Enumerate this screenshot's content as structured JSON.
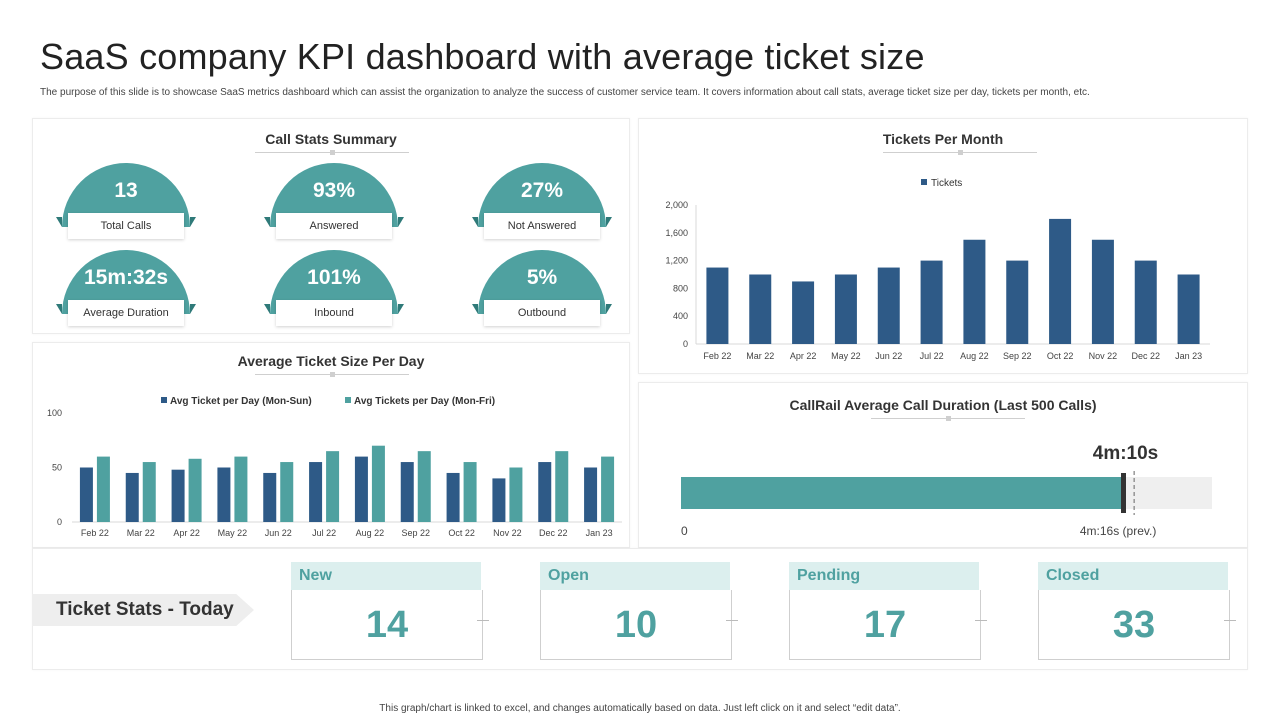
{
  "page": {
    "title": "SaaS company KPI dashboard with average ticket size",
    "subtitle": "The purpose of this slide is to showcase SaaS metrics dashboard which can assist the organization to analyze the success of customer service team. It covers information about call stats, average ticket size per day, tickets per month, etc.",
    "footer": "This graph/chart is linked to excel, and changes automatically based on data. Just left click on it and select “edit data”."
  },
  "colors": {
    "teal": "#4fa1a0",
    "navy": "#2e5a87",
    "light_teal": "#dcefee"
  },
  "call_stats": {
    "title": "Call Stats Summary",
    "cards": [
      {
        "value": "13",
        "label": "Total Calls"
      },
      {
        "value": "93%",
        "label": "Answered"
      },
      {
        "value": "27%",
        "label": "Not Answered"
      },
      {
        "value": "15m:32s",
        "label": "Average Duration"
      },
      {
        "value": "101%",
        "label": "Inbound"
      },
      {
        "value": "5%",
        "label": "Outbound"
      }
    ]
  },
  "call_duration": {
    "title": "CallRail Average Call Duration (Last 500 Calls)",
    "current_label": "4m:10s",
    "min_label": "0",
    "prev_label": "4m:16s (prev.)",
    "current_seconds": 250,
    "prev_seconds": 256,
    "max_seconds": 300
  },
  "ticket_stats": {
    "title": "Ticket Stats - Today",
    "cards": [
      {
        "label": "New",
        "value": "14"
      },
      {
        "label": "Open",
        "value": "10"
      },
      {
        "label": "Pending",
        "value": "17"
      },
      {
        "label": "Closed",
        "value": "33"
      }
    ]
  },
  "chart_data": [
    {
      "id": "tickets_per_month",
      "type": "bar",
      "title": "Tickets Per Month",
      "categories": [
        "Feb 22",
        "Mar 22",
        "Apr 22",
        "May 22",
        "Jun 22",
        "Jul 22",
        "Aug 22",
        "Sep 22",
        "Oct 22",
        "Nov 22",
        "Dec 22",
        "Jan 23"
      ],
      "series": [
        {
          "name": "Tickets",
          "values": [
            1100,
            1000,
            900,
            1000,
            1100,
            1200,
            1500,
            1200,
            1800,
            1500,
            1200,
            1000
          ]
        }
      ],
      "ylim": [
        0,
        2000
      ],
      "yticks": [
        "0",
        "400",
        "800",
        "1,200",
        "1,600",
        "2,000"
      ],
      "ytick_values": [
        0,
        400,
        800,
        1200,
        1600,
        2000
      ],
      "legend": "top-center"
    },
    {
      "id": "avg_ticket_size",
      "type": "bar",
      "title": "Average Ticket Size Per Day",
      "categories": [
        "Feb 22",
        "Mar 22",
        "Apr 22",
        "May 22",
        "Jun 22",
        "Jul 22",
        "Aug 22",
        "Sep 22",
        "Oct 22",
        "Nov 22",
        "Dec 22",
        "Jan 23"
      ],
      "series": [
        {
          "name": "Avg Ticket per Day (Mon-Sun)",
          "values": [
            50,
            45,
            48,
            50,
            45,
            55,
            60,
            55,
            45,
            40,
            55,
            50
          ]
        },
        {
          "name": "Avg Tickets per Day (Mon-Fri)",
          "values": [
            60,
            55,
            58,
            60,
            55,
            65,
            70,
            65,
            55,
            50,
            65,
            60
          ]
        }
      ],
      "ylim": [
        0,
        100
      ],
      "yticks": [
        "0",
        "50",
        "100"
      ],
      "ytick_values": [
        0,
        50,
        100
      ],
      "legend": "top-center"
    }
  ]
}
